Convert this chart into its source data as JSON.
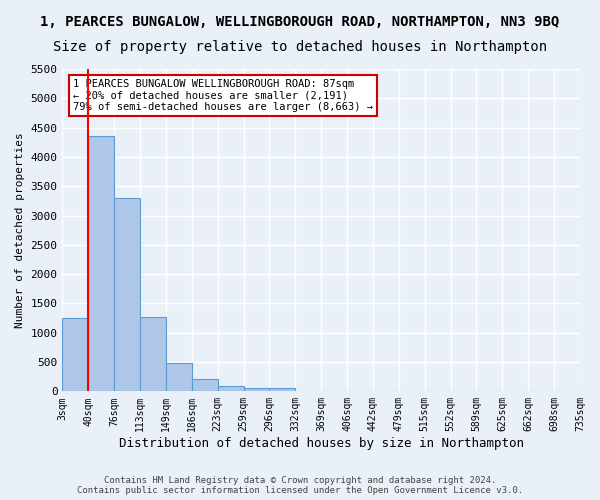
{
  "title": "1, PEARCES BUNGALOW, WELLINGBOROUGH ROAD, NORTHAMPTON, NN3 9BQ",
  "subtitle": "Size of property relative to detached houses in Northampton",
  "xlabel": "Distribution of detached houses by size in Northampton",
  "ylabel": "Number of detached properties",
  "bin_labels": [
    "3sqm",
    "40sqm",
    "76sqm",
    "113sqm",
    "149sqm",
    "186sqm",
    "223sqm",
    "259sqm",
    "296sqm",
    "332sqm",
    "369sqm",
    "406sqm",
    "442sqm",
    "479sqm",
    "515sqm",
    "552sqm",
    "589sqm",
    "625sqm",
    "662sqm",
    "698sqm",
    "735sqm"
  ],
  "bar_values": [
    1250,
    4350,
    3300,
    1260,
    490,
    215,
    90,
    65,
    55,
    0,
    0,
    0,
    0,
    0,
    0,
    0,
    0,
    0,
    0,
    0
  ],
  "bar_color": "#aec6e8",
  "bar_edge_color": "#5b9bd5",
  "bar_width": 1.0,
  "red_line_x": 1.0,
  "ylim": [
    0,
    5500
  ],
  "yticks": [
    0,
    500,
    1000,
    1500,
    2000,
    2500,
    3000,
    3500,
    4000,
    4500,
    5000,
    5500
  ],
  "annotation_text": "1 PEARCES BUNGALOW WELLINGBOROUGH ROAD: 87sqm\n← 20% of detached houses are smaller (2,191)\n79% of semi-detached houses are larger (8,663) →",
  "annotation_box_color": "#ffffff",
  "annotation_box_edge": "#cc0000",
  "footer_text": "Contains HM Land Registry data © Crown copyright and database right 2024.\nContains public sector information licensed under the Open Government Licence v3.0.",
  "bg_color": "#eaf0f8",
  "plot_bg_color": "#eaf0f8",
  "grid_color": "#ffffff",
  "title_fontsize": 10,
  "subtitle_fontsize": 10
}
